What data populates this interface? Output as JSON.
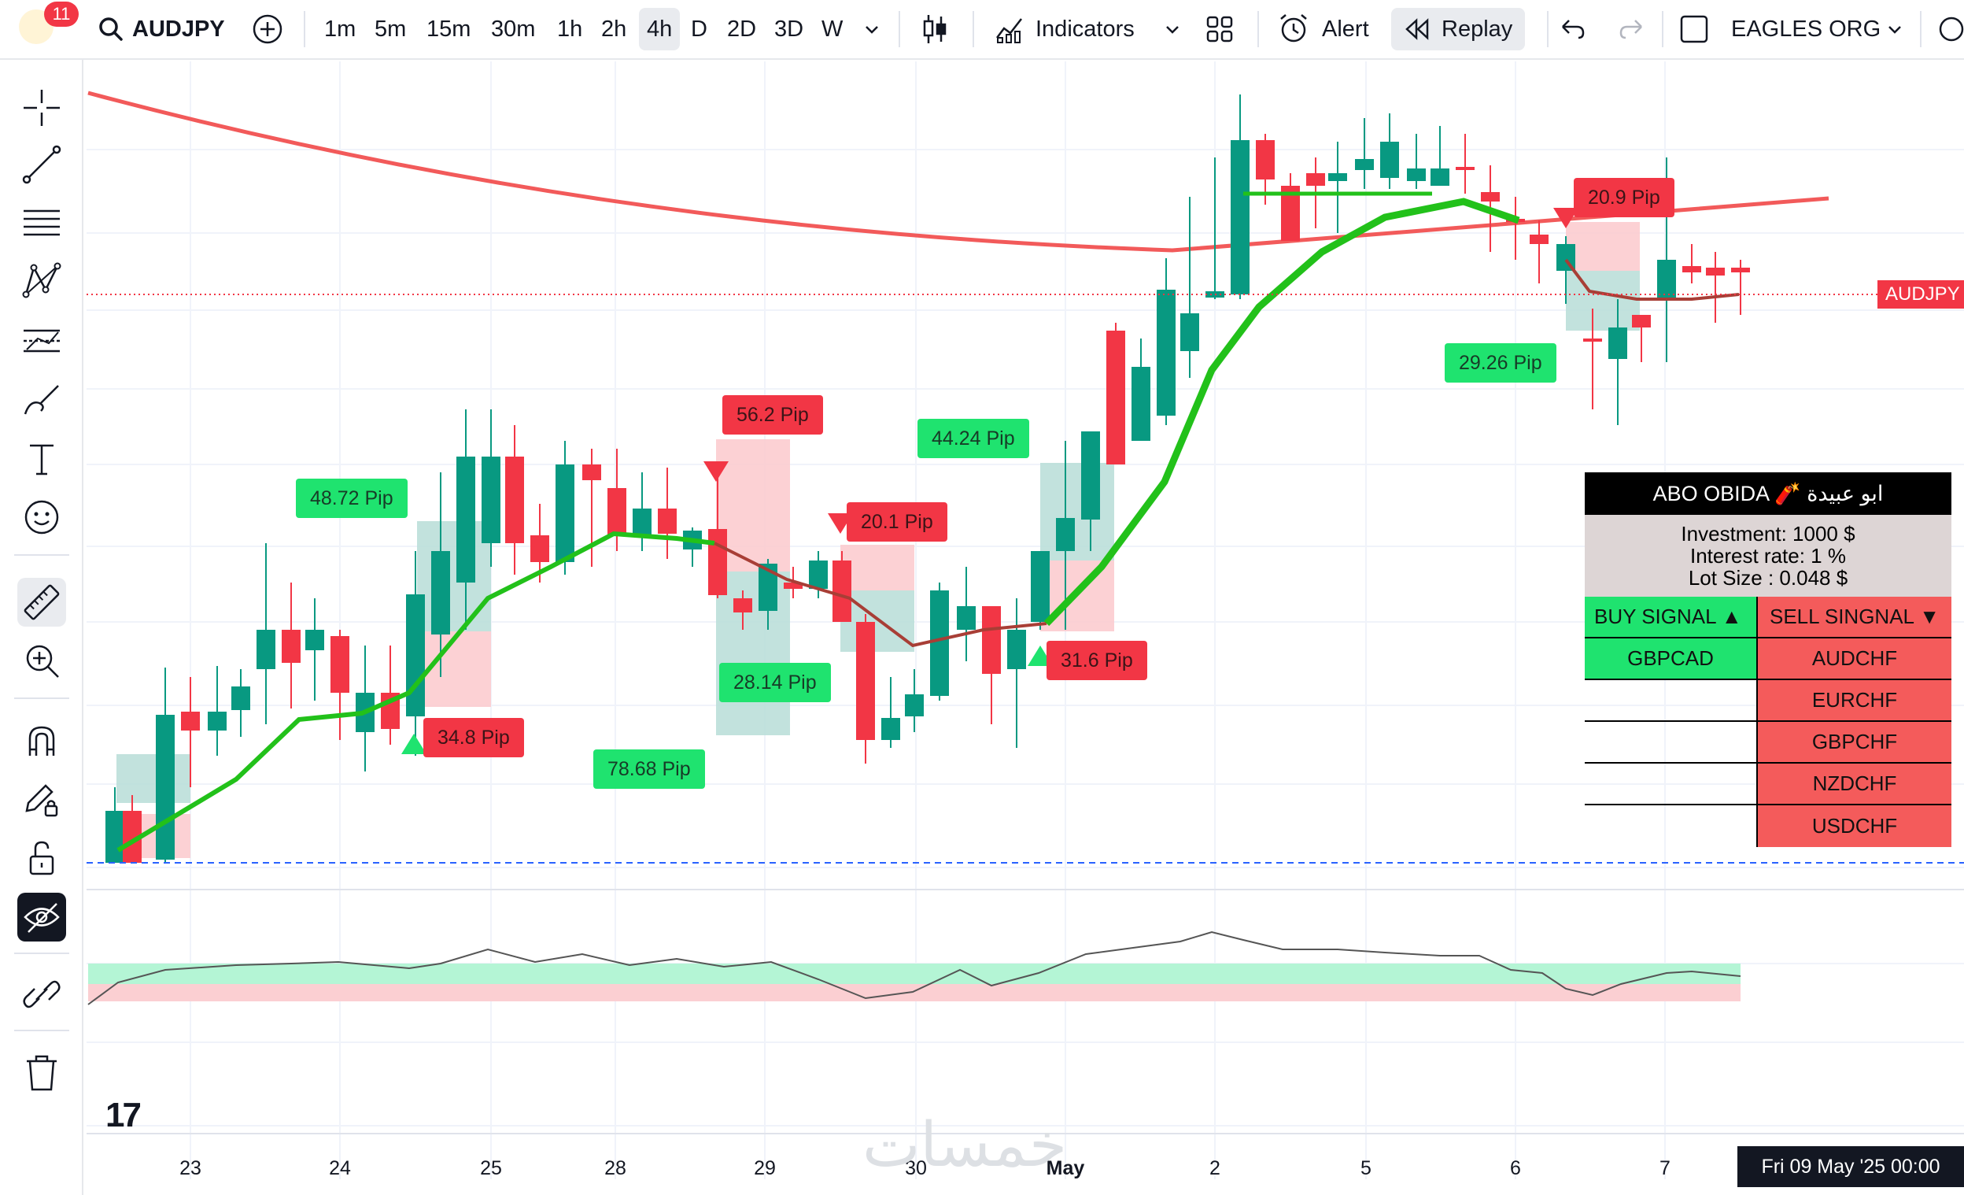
{
  "topbar": {
    "notifications_count": "11",
    "symbol": "AUDJPY",
    "timeframes": [
      "1m",
      "5m",
      "15m",
      "30m",
      "1h",
      "2h",
      "4h",
      "D",
      "2D",
      "3D",
      "W"
    ],
    "active_timeframe": "4h",
    "indicators_label": "Indicators",
    "alert_label": "Alert",
    "replay_label": "Replay",
    "layout_name": "EAGLES ORG"
  },
  "chart": {
    "symbol_tag": "AUDJPY",
    "date_tag": "Fri 09 May '25   00:00",
    "x_labels": [
      "23",
      "24",
      "25",
      "28",
      "29",
      "30",
      "May",
      "2",
      "5",
      "6",
      "7"
    ],
    "pip_labels": [
      {
        "text": "48.72 Pip",
        "color": "green"
      },
      {
        "text": "34.8 Pip",
        "color": "red"
      },
      {
        "text": "56.2 Pip",
        "color": "red"
      },
      {
        "text": "28.14 Pip",
        "color": "green"
      },
      {
        "text": "78.68 Pip",
        "color": "green"
      },
      {
        "text": "20.1 Pip",
        "color": "red"
      },
      {
        "text": "44.24 Pip",
        "color": "green"
      },
      {
        "text": "31.6 Pip",
        "color": "red"
      },
      {
        "text": "20.9 Pip",
        "color": "red"
      },
      {
        "text": "29.26 Pip",
        "color": "green"
      }
    ],
    "watermark": "خمسات",
    "colors": {
      "up": "#089981",
      "down": "#f23645",
      "ema": "#f25a5a",
      "trend": "#22c11a"
    }
  },
  "panel": {
    "title": "ABO OBIDA 🧨 ابو عبيدة",
    "investment": "Investment: 1000 $",
    "interest": "Interest rate: 1 %",
    "lot_size": "Lot Size : 0.048 $",
    "buy_header": "BUY SIGNAL ▲",
    "sell_header": "SELL SINGNAL ▼",
    "buy_pairs": [
      "GBPCAD",
      "",
      "",
      "",
      ""
    ],
    "sell_pairs": [
      "AUDCHF",
      "EURCHF",
      "GBPCHF",
      "NZDCHF",
      "USDCHF"
    ]
  }
}
